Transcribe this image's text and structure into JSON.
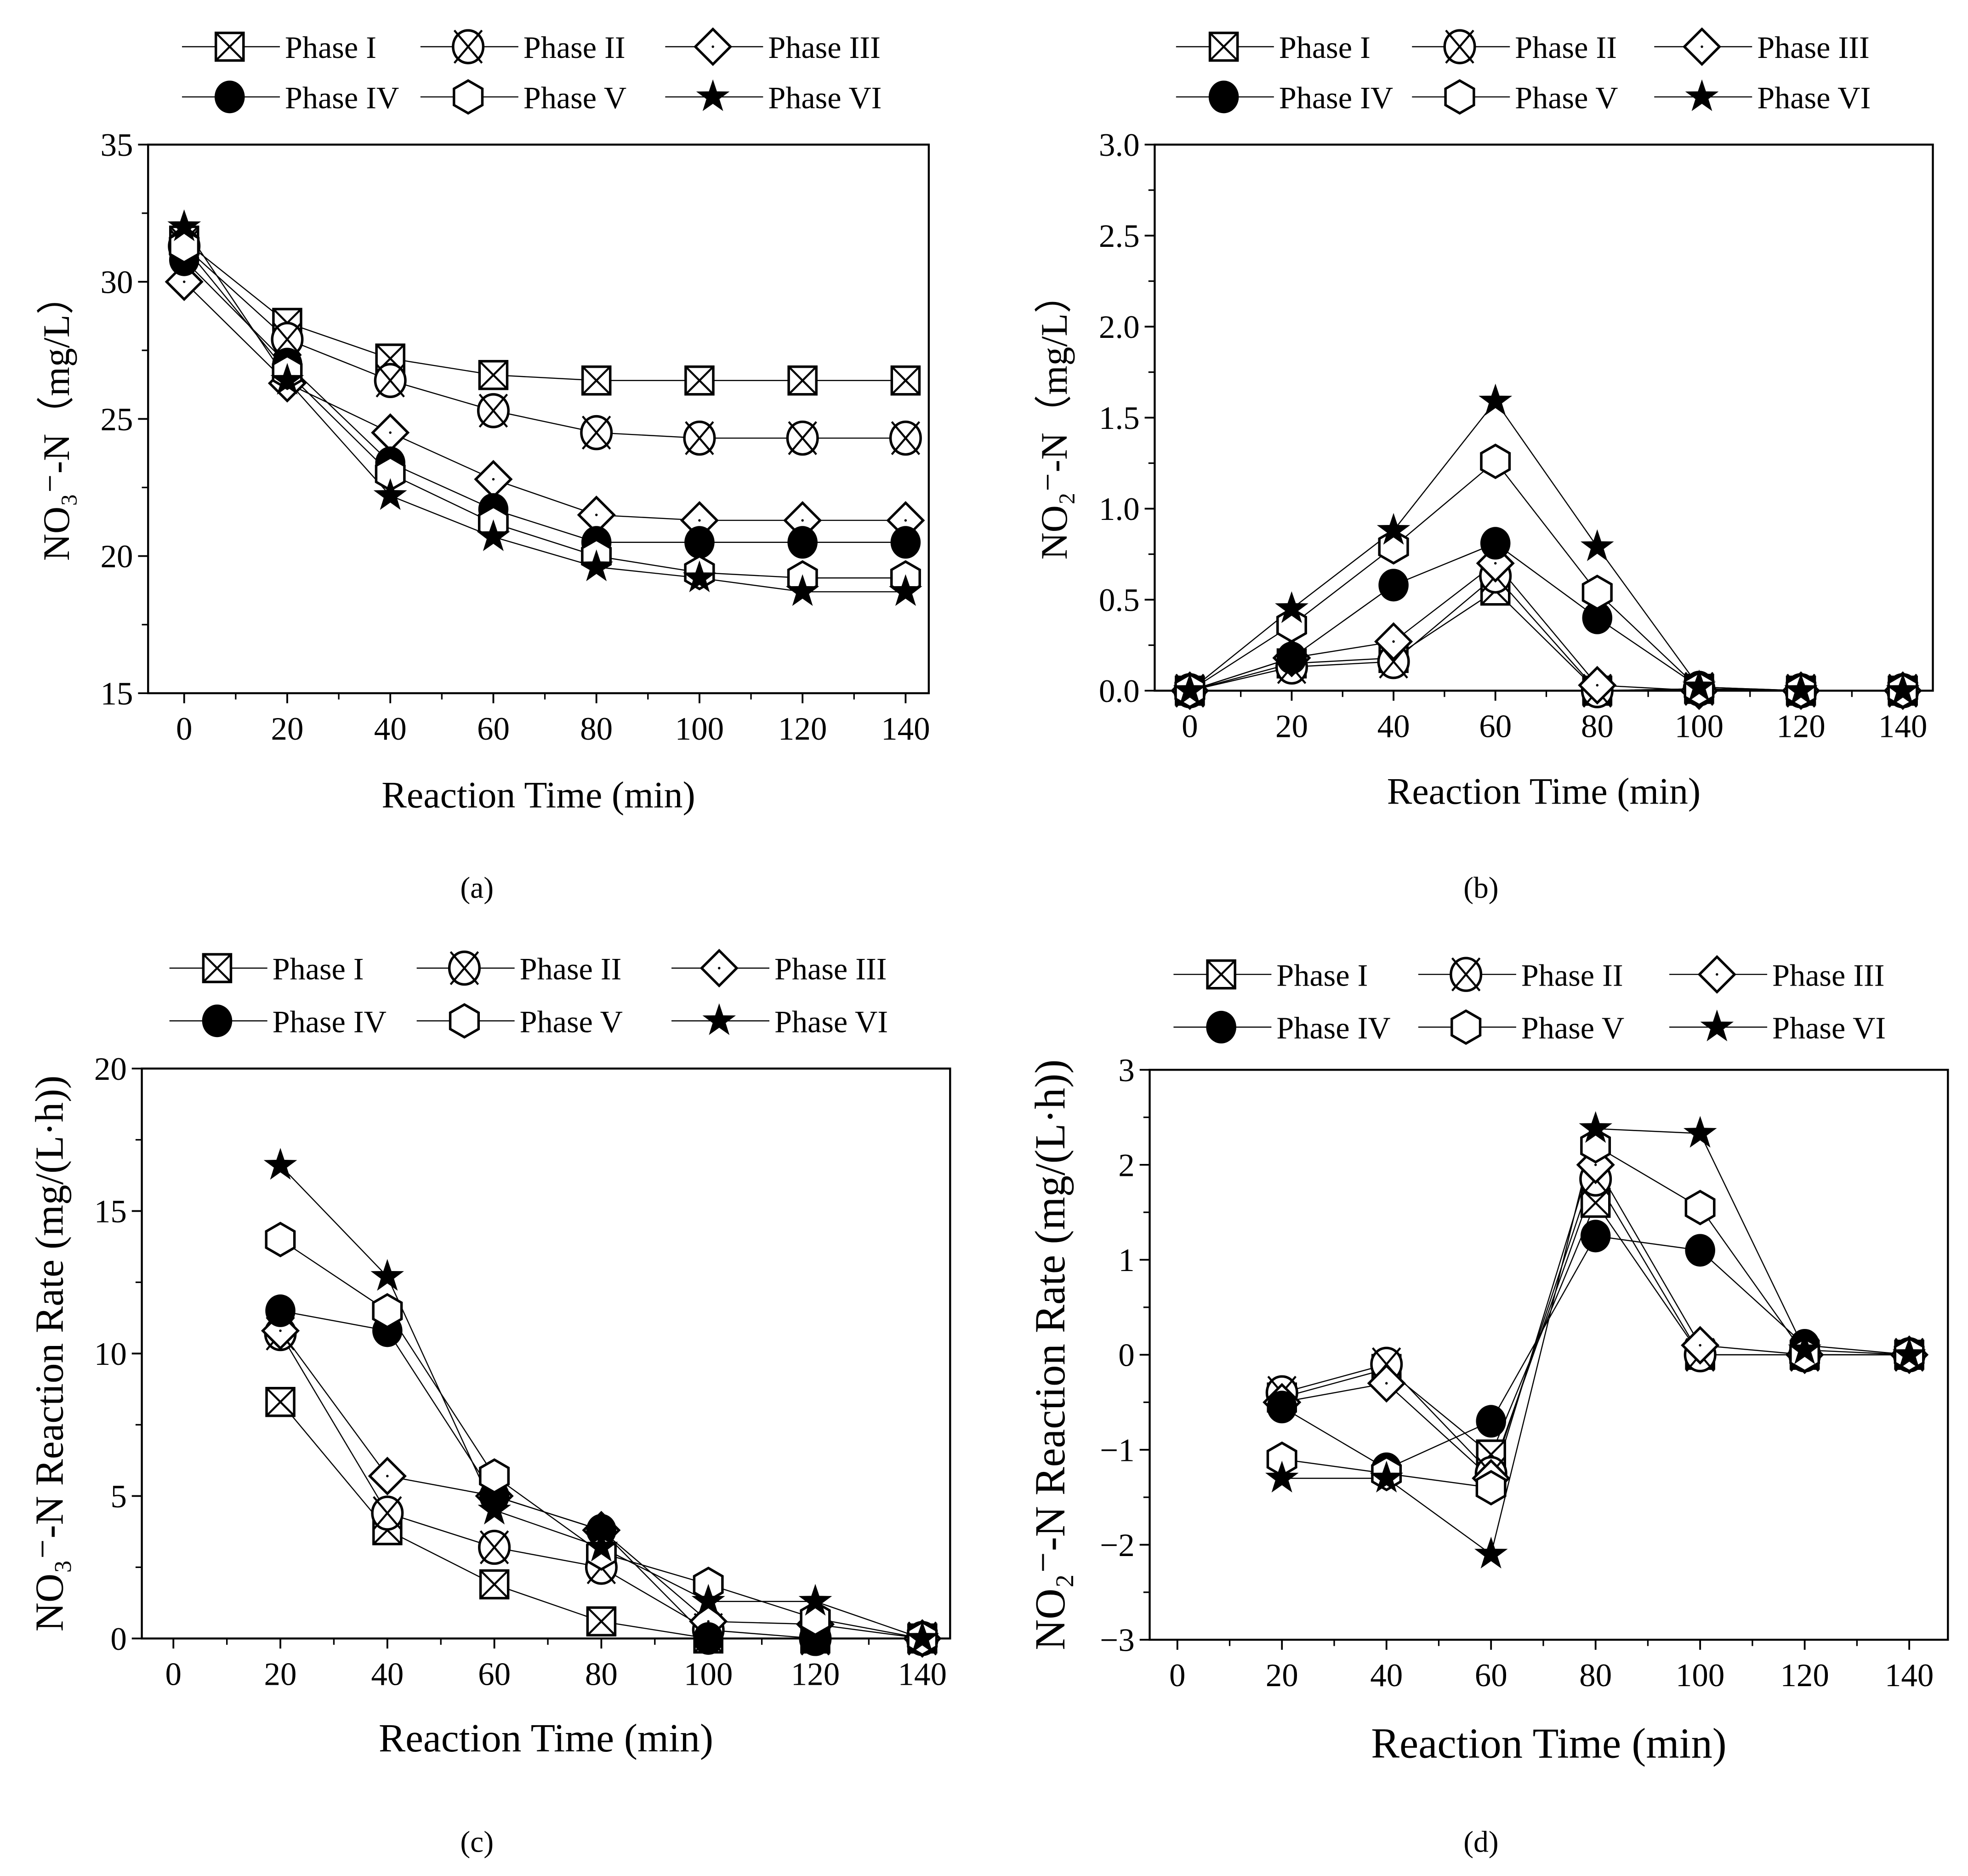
{
  "legend_labels": [
    "Phase I",
    "Phase II",
    "Phase III",
    "Phase IV",
    "Phase V",
    "Phase VI"
  ],
  "colors": {
    "ink": "#000000",
    "background": "#ffffff"
  },
  "chart_data": [
    {
      "type": "line",
      "panel_label": "(a)",
      "xlabel": "Reaction Time (min)",
      "ylabel": "NO₃⁻-N（mg/L）",
      "xlim": [
        -7,
        144.5
      ],
      "ylim": [
        15,
        35
      ],
      "xticks": [
        0,
        20,
        40,
        60,
        80,
        100,
        120,
        140
      ],
      "xtick_labels": [
        "0",
        "20",
        "40",
        "60",
        "80",
        "100",
        "120",
        "140"
      ],
      "yticks": [
        15,
        20,
        25,
        30,
        35
      ],
      "ytick_labels": [
        "15",
        "20",
        "25",
        "30",
        "35"
      ],
      "legend": "top",
      "grid": false,
      "x": [
        0,
        20,
        40,
        60,
        80,
        100,
        120,
        140
      ],
      "series": [
        {
          "name": "Phase I",
          "values": [
            31.5,
            28.5,
            27.2,
            26.6,
            26.4,
            26.4,
            26.4,
            26.4
          ]
        },
        {
          "name": "Phase II",
          "values": [
            31.3,
            27.9,
            26.4,
            25.3,
            24.5,
            24.3,
            24.3,
            24.3
          ]
        },
        {
          "name": "Phase III",
          "values": [
            30.0,
            26.3,
            24.5,
            22.8,
            21.5,
            21.3,
            21.3,
            21.3
          ]
        },
        {
          "name": "Phase IV",
          "values": [
            30.8,
            27.0,
            23.4,
            21.7,
            20.5,
            20.5,
            20.5,
            20.5
          ]
        },
        {
          "name": "Phase V",
          "values": [
            31.3,
            26.7,
            23.0,
            21.2,
            20.0,
            19.4,
            19.2,
            19.2
          ]
        },
        {
          "name": "Phase VI",
          "values": [
            32.0,
            26.4,
            22.2,
            20.7,
            19.6,
            19.2,
            18.7,
            18.7
          ]
        }
      ]
    },
    {
      "type": "line",
      "panel_label": "(b)",
      "xlabel": "Reaction Time (min)",
      "ylabel": "NO₂⁻-N（mg/L）",
      "xlim": [
        -6.9,
        145.9
      ],
      "ylim": [
        0,
        3
      ],
      "xticks": [
        0,
        20,
        40,
        60,
        80,
        100,
        120,
        140
      ],
      "xtick_labels": [
        "0",
        "20",
        "40",
        "60",
        "80",
        "100",
        "120",
        "140"
      ],
      "yticks": [
        0,
        0.5,
        1,
        1.5,
        2,
        2.5,
        3
      ],
      "ytick_labels": [
        "0.0",
        "0.5",
        "1.0",
        "1.5",
        "2.0",
        "2.5",
        "3.0"
      ],
      "legend": "top",
      "grid": false,
      "x": [
        0,
        20,
        40,
        60,
        80,
        100,
        120,
        140
      ],
      "series": [
        {
          "name": "Phase I",
          "values": [
            0,
            0.15,
            0.18,
            0.55,
            0.0,
            0.01,
            0,
            0
          ]
        },
        {
          "name": "Phase II",
          "values": [
            0,
            0.13,
            0.16,
            0.63,
            0.0,
            0.01,
            0,
            0
          ]
        },
        {
          "name": "Phase III",
          "values": [
            0,
            0.18,
            0.27,
            0.7,
            0.03,
            0,
            0,
            0
          ]
        },
        {
          "name": "Phase IV",
          "values": [
            0,
            0.18,
            0.58,
            0.81,
            0.4,
            0.02,
            0,
            0
          ]
        },
        {
          "name": "Phase V",
          "values": [
            0,
            0.36,
            0.79,
            1.26,
            0.54,
            0.01,
            0,
            0
          ]
        },
        {
          "name": "Phase VI",
          "values": [
            0,
            0.45,
            0.88,
            1.59,
            0.79,
            0.02,
            0,
            0
          ]
        }
      ]
    },
    {
      "type": "line",
      "panel_label": "(c)",
      "xlabel": "Reaction Time (min)",
      "ylabel": "NO₃⁻-N Reaction Rate (mg/(L·h))",
      "xlim": [
        -5.9,
        145.2
      ],
      "ylim": [
        0,
        20
      ],
      "xticks": [
        0,
        20,
        40,
        60,
        80,
        100,
        120,
        140
      ],
      "xtick_labels": [
        "0",
        "20",
        "40",
        "60",
        "80",
        "100",
        "120",
        "140"
      ],
      "yticks": [
        0,
        5,
        10,
        15,
        20
      ],
      "ytick_labels": [
        "0",
        "5",
        "10",
        "15",
        "20"
      ],
      "legend": "top",
      "grid": false,
      "x": [
        20,
        40,
        60,
        80,
        100,
        120,
        140
      ],
      "series": [
        {
          "name": "Phase I",
          "values": [
            8.3,
            3.8,
            1.9,
            0.6,
            0,
            0,
            0
          ]
        },
        {
          "name": "Phase II",
          "values": [
            10.7,
            4.4,
            3.2,
            2.5,
            0.3,
            0,
            0
          ]
        },
        {
          "name": "Phase III",
          "values": [
            10.8,
            5.7,
            5.0,
            3.8,
            0.6,
            0.5,
            0
          ]
        },
        {
          "name": "Phase IV",
          "values": [
            11.5,
            10.8,
            5.0,
            3.8,
            0,
            0,
            0
          ]
        },
        {
          "name": "Phase V",
          "values": [
            14.0,
            11.5,
            5.7,
            3.0,
            1.9,
            0.7,
            0
          ]
        },
        {
          "name": "Phase VI",
          "values": [
            16.6,
            12.7,
            4.5,
            3.2,
            1.3,
            1.3,
            0
          ]
        }
      ]
    },
    {
      "type": "line",
      "panel_label": "(d)",
      "xlabel": "Reaction Time (min)",
      "ylabel": "NO₂⁻-N Reaction Rate (mg/(L·h))",
      "xlim": [
        -5.3,
        147.4
      ],
      "ylim": [
        -3,
        3
      ],
      "xticks": [
        0,
        20,
        40,
        60,
        80,
        100,
        120,
        140
      ],
      "xtick_labels": [
        "0",
        "20",
        "40",
        "60",
        "80",
        "100",
        "120",
        "140"
      ],
      "yticks": [
        -3,
        -2,
        -1,
        0,
        1,
        2,
        3
      ],
      "ytick_labels": [
        "−3",
        "−2",
        "−1",
        "0",
        "1",
        "2",
        "3"
      ],
      "legend": "top",
      "grid": false,
      "x": [
        20,
        40,
        60,
        80,
        100,
        120,
        140
      ],
      "series": [
        {
          "name": "Phase I",
          "values": [
            -0.45,
            -0.15,
            -1.05,
            1.6,
            0,
            0,
            0
          ]
        },
        {
          "name": "Phase II",
          "values": [
            -0.4,
            -0.1,
            -1.25,
            1.85,
            0,
            0,
            0
          ]
        },
        {
          "name": "Phase III",
          "values": [
            -0.5,
            -0.3,
            -1.3,
            2.0,
            0.1,
            0,
            0
          ]
        },
        {
          "name": "Phase IV",
          "values": [
            -0.55,
            -1.2,
            -0.7,
            1.25,
            1.1,
            0.1,
            0
          ]
        },
        {
          "name": "Phase V",
          "values": [
            -1.1,
            -1.25,
            -1.4,
            2.2,
            1.55,
            0,
            0
          ]
        },
        {
          "name": "Phase VI",
          "values": [
            -1.3,
            -1.3,
            -2.1,
            2.38,
            2.33,
            0.05,
            0
          ]
        }
      ]
    }
  ]
}
